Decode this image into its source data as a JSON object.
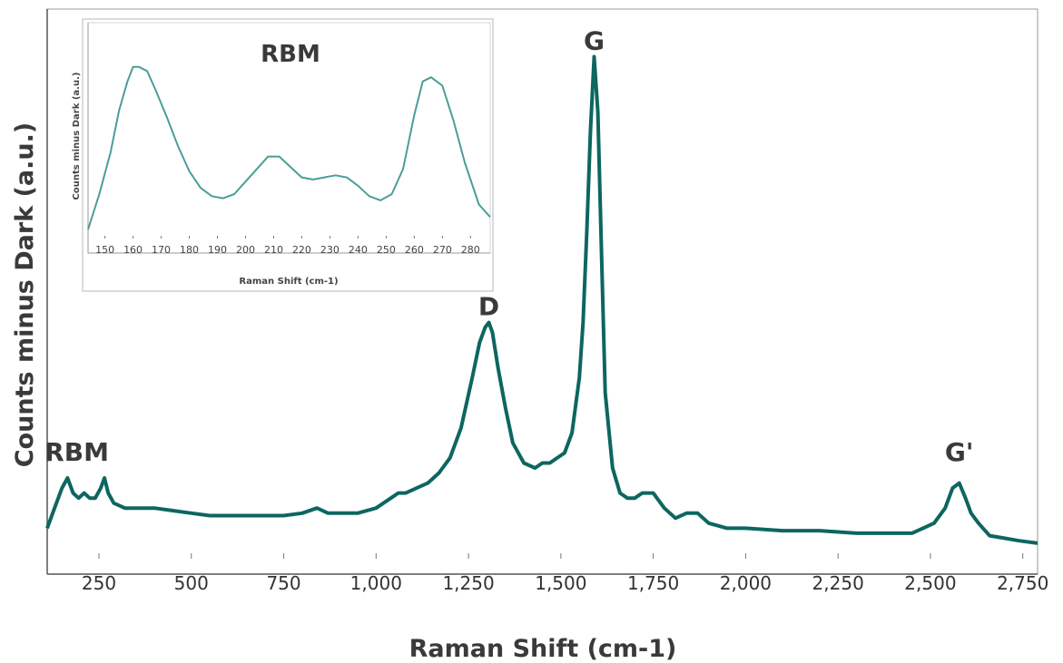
{
  "chart_data": [
    {
      "type": "line",
      "title": "",
      "xlabel": "Raman Shift (cm-1)",
      "ylabel": "Counts minus Dark (a.u.)",
      "xlim": [
        110,
        2790
      ],
      "ylim": [
        0,
        100
      ],
      "grid": false,
      "x_ticks": [
        250,
        500,
        750,
        1000,
        1250,
        1500,
        1750,
        2000,
        2250,
        2500,
        2750
      ],
      "x_tick_labels": [
        "250",
        "500",
        "750",
        "1,000",
        "1,250",
        "1,500",
        "1,750",
        "2,000",
        "2,250",
        "2,500",
        "2,750"
      ],
      "color": "#0d6660",
      "annotations": [
        {
          "text": "RBM",
          "x": 190,
          "y": 17
        },
        {
          "text": "D",
          "x": 1305,
          "y": 46
        },
        {
          "text": "G",
          "x": 1590,
          "y": 99
        },
        {
          "text": "G'",
          "x": 2578,
          "y": 17
        }
      ],
      "series": [
        {
          "x": [
            110,
            130,
            150,
            165,
            180,
            195,
            210,
            225,
            240,
            255,
            265,
            275,
            290,
            320,
            360,
            400,
            450,
            500,
            550,
            600,
            650,
            700,
            750,
            800,
            840,
            870,
            900,
            950,
            1000,
            1040,
            1060,
            1080,
            1110,
            1140,
            1170,
            1200,
            1230,
            1260,
            1280,
            1295,
            1305,
            1315,
            1330,
            1350,
            1370,
            1400,
            1430,
            1450,
            1470,
            1490,
            1510,
            1530,
            1550,
            1560,
            1570,
            1580,
            1590,
            1600,
            1610,
            1620,
            1640,
            1660,
            1680,
            1700,
            1720,
            1750,
            1780,
            1810,
            1840,
            1870,
            1900,
            1950,
            2000,
            2100,
            2200,
            2300,
            2400,
            2450,
            2480,
            2510,
            2540,
            2560,
            2578,
            2595,
            2610,
            2630,
            2660,
            2700,
            2740,
            2790
          ],
          "y": [
            5,
            9,
            13,
            15,
            12,
            11,
            12,
            11,
            11,
            13,
            15,
            12,
            10,
            9,
            9,
            9,
            8.5,
            8,
            7.5,
            7.5,
            7.5,
            7.5,
            7.5,
            8,
            9,
            8,
            8,
            8,
            9,
            11,
            12,
            12,
            13,
            14,
            16,
            19,
            25,
            35,
            42,
            45,
            46,
            44,
            37,
            29,
            22,
            18,
            17,
            18,
            18,
            19,
            20,
            24,
            35,
            46,
            64,
            84,
            99,
            88,
            60,
            32,
            17,
            12,
            11,
            11,
            12,
            12,
            9,
            7,
            8,
            8,
            6,
            5,
            5,
            4.5,
            4.5,
            4,
            4,
            4,
            5,
            6,
            9,
            13,
            14,
            11,
            8,
            6,
            3.5,
            3,
            2.5,
            2
          ]
        }
      ]
    },
    {
      "type": "line",
      "title": "RBM",
      "xlabel": "Raman Shift (cm-1)",
      "ylabel": "Counts minus Dark (a.u.)",
      "xlim": [
        144,
        287
      ],
      "ylim": [
        0,
        100
      ],
      "grid": false,
      "x_ticks": [
        150,
        160,
        170,
        180,
        190,
        200,
        210,
        220,
        230,
        240,
        250,
        260,
        270,
        280
      ],
      "x_tick_labels": [
        "150",
        "160",
        "170",
        "180",
        "190",
        "200",
        "210",
        "220",
        "230",
        "240",
        "250",
        "260",
        "270",
        "280"
      ],
      "color": "#4a9e99",
      "series": [
        {
          "x": [
            144,
            148,
            152,
            155,
            158,
            160,
            162,
            165,
            168,
            172,
            176,
            180,
            184,
            188,
            192,
            196,
            200,
            204,
            208,
            212,
            216,
            220,
            224,
            228,
            232,
            236,
            240,
            244,
            248,
            252,
            256,
            260,
            263,
            266,
            270,
            274,
            278,
            283,
            287
          ],
          "y": [
            3,
            20,
            40,
            60,
            74,
            81,
            81,
            79,
            70,
            57,
            43,
            31,
            23,
            19,
            18,
            20,
            26,
            32,
            38,
            38,
            33,
            28,
            27,
            28,
            29,
            28,
            24,
            19,
            17,
            20,
            32,
            58,
            74,
            76,
            72,
            55,
            35,
            15,
            9
          ]
        }
      ]
    }
  ]
}
